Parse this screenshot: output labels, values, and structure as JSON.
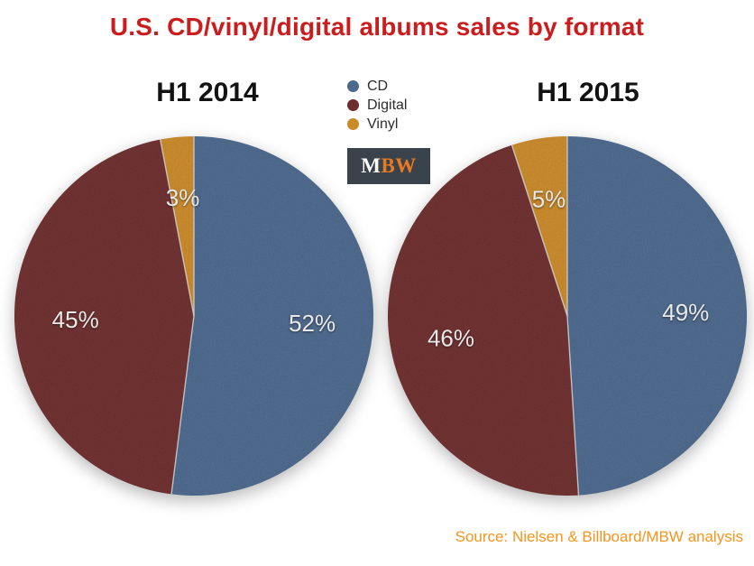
{
  "title": "U.S. CD/vinyl/digital albums sales by format",
  "colors": {
    "title": "#cb1d1d",
    "source": "#f5941e",
    "cd": "#4b688d",
    "digital": "#6e2d2d",
    "vinyl": "#cb8a28",
    "logo_bg": "#3a424c",
    "logo_m": "#ffffff",
    "logo_bw": "#e87b21"
  },
  "legend": {
    "position": "top-center",
    "items": [
      {
        "label": "CD",
        "color": "#4b688d"
      },
      {
        "label": "Digital",
        "color": "#6e2d2d"
      },
      {
        "label": "Vinyl",
        "color": "#cb8a28"
      }
    ]
  },
  "logo": {
    "m": "M",
    "bw": "BW"
  },
  "source": "Source: Nielsen & Billboard/MBW analysis",
  "chart_data": [
    {
      "type": "pie",
      "title": "H1 2014",
      "categories": [
        "CD",
        "Digital",
        "Vinyl"
      ],
      "values": [
        52,
        45,
        3
      ],
      "value_labels": [
        "52%",
        "45%",
        "3%"
      ],
      "colors": [
        "#4b688d",
        "#6e2d2d",
        "#cb8a28"
      ],
      "start_angle_deg": 0,
      "direction": "clockwise",
      "legend_position": "top-center"
    },
    {
      "type": "pie",
      "title": "H1 2015",
      "categories": [
        "CD",
        "Digital",
        "Vinyl"
      ],
      "values": [
        49,
        46,
        5
      ],
      "value_labels": [
        "49%",
        "46%",
        "5%"
      ],
      "colors": [
        "#4b688d",
        "#6e2d2d",
        "#cb8a28"
      ],
      "start_angle_deg": 0,
      "direction": "clockwise",
      "legend_position": "top-center"
    }
  ]
}
